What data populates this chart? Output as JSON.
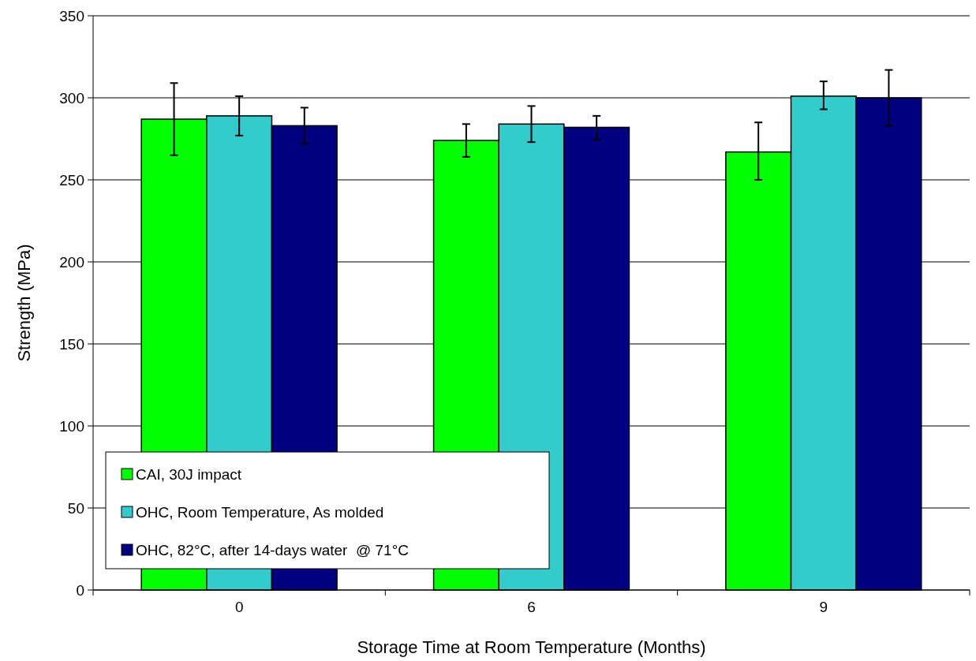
{
  "chart_data": {
    "type": "bar",
    "xlabel": "Storage Time at Room Temperature (Months)",
    "ylabel": "Strength (MPa)",
    "categories": [
      "0",
      "6",
      "9"
    ],
    "series": [
      {
        "name": "CAI, 30J impact",
        "color": "#00ff00",
        "values": [
          287,
          274,
          267
        ],
        "errors": [
          22,
          10,
          [
            250,
            285
          ]
        ]
      },
      {
        "name": "OHC, Room Temperature, As molded",
        "color": "#33cccc",
        "values": [
          289,
          284,
          301
        ],
        "errors": [
          12,
          11,
          [
            293,
            310
          ]
        ]
      },
      {
        "name": "OHC, 82°C, after 14-days water  @ 71°C",
        "color": "#000080",
        "values": [
          283,
          282,
          300
        ],
        "errors": [
          [
            272,
            294
          ],
          [
            274.5,
            289
          ],
          [
            283,
            317
          ]
        ]
      }
    ],
    "ylim": [
      0,
      350
    ],
    "yticks": [
      0,
      50,
      100,
      150,
      200,
      250,
      300,
      350
    ],
    "grid": "y",
    "legend": "bottom left"
  }
}
